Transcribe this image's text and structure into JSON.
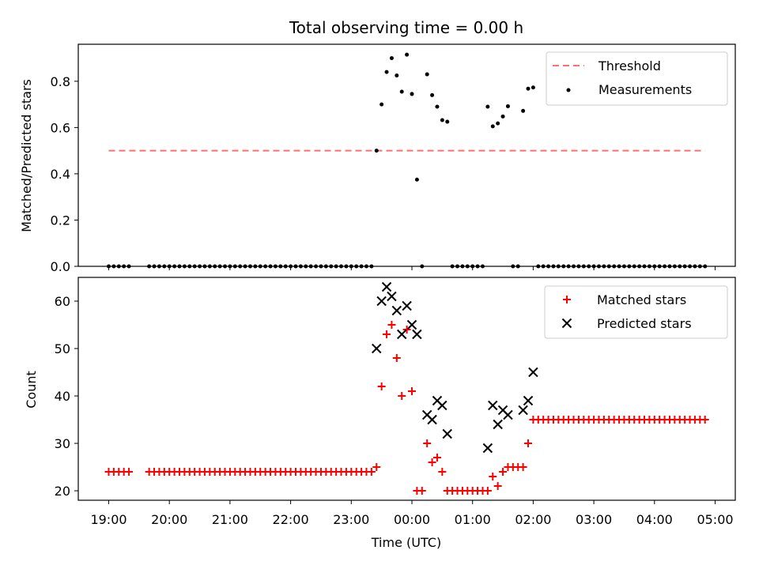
{
  "chart_data": {
    "title": "Total observing time = 0.00 h",
    "xlabel": "Time (UTC)",
    "x_ticks": [
      "19:00",
      "20:00",
      "21:00",
      "22:00",
      "23:00",
      "00:00",
      "01:00",
      "02:00",
      "03:00",
      "04:00",
      "05:00"
    ],
    "panels": [
      {
        "type": "scatter",
        "ylabel": "Matched/Predicted stars",
        "ylim": [
          0,
          0.96
        ],
        "y_ticks": [
          "0.0",
          "0.2",
          "0.4",
          "0.6",
          "0.8"
        ],
        "legend_placement": "upper right",
        "threshold": {
          "name": "Threshold",
          "value": 0.5,
          "x_range": [
            "19:00",
            "04:50"
          ],
          "color": "#ff6f6f"
        },
        "measurements": {
          "name": "Measurements",
          "color": "#000000",
          "x": [
            "19:00",
            "19:05",
            "19:10",
            "19:15",
            "19:20",
            "19:40",
            "19:45",
            "19:50",
            "19:55",
            "20:00",
            "20:05",
            "20:10",
            "20:15",
            "20:20",
            "20:25",
            "20:30",
            "20:35",
            "20:40",
            "20:45",
            "20:50",
            "20:55",
            "21:00",
            "21:05",
            "21:10",
            "21:15",
            "21:20",
            "21:25",
            "21:30",
            "21:35",
            "21:40",
            "21:45",
            "21:50",
            "21:55",
            "22:00",
            "22:05",
            "22:10",
            "22:15",
            "22:20",
            "22:25",
            "22:30",
            "22:35",
            "22:40",
            "22:45",
            "22:50",
            "22:55",
            "23:00",
            "23:05",
            "23:10",
            "23:15",
            "23:20",
            "23:25",
            "23:30",
            "23:35",
            "23:40",
            "23:45",
            "23:50",
            "23:55",
            "00:00",
            "00:05",
            "00:10",
            "00:15",
            "00:20",
            "00:25",
            "00:30",
            "00:35",
            "00:40",
            "00:45",
            "00:50",
            "00:55",
            "01:00",
            "01:05",
            "01:10",
            "01:15",
            "01:20",
            "01:25",
            "01:30",
            "01:35",
            "01:40",
            "01:45",
            "01:50",
            "01:55",
            "02:00",
            "02:05",
            "02:10",
            "02:15",
            "02:20",
            "02:25",
            "02:30",
            "02:35",
            "02:40",
            "02:45",
            "02:50",
            "02:55",
            "03:00",
            "03:05",
            "03:10",
            "03:15",
            "03:20",
            "03:25",
            "03:30",
            "03:35",
            "03:40",
            "03:45",
            "03:50",
            "03:55",
            "04:00",
            "04:05",
            "04:10",
            "04:15",
            "04:20",
            "04:25",
            "04:30",
            "04:35",
            "04:40",
            "04:45",
            "04:50"
          ],
          "y": [
            0,
            0,
            0,
            0,
            0,
            0,
            0,
            0,
            0,
            0,
            0,
            0,
            0,
            0,
            0,
            0,
            0,
            0,
            0,
            0,
            0,
            0,
            0,
            0,
            0,
            0,
            0,
            0,
            0,
            0,
            0,
            0,
            0,
            0,
            0,
            0,
            0,
            0,
            0,
            0,
            0,
            0,
            0,
            0,
            0,
            0,
            0,
            0,
            0,
            0,
            0.5,
            0.7,
            0.84,
            0.9,
            0.825,
            0.755,
            0.915,
            0.745,
            0.375,
            0,
            0.83,
            0.74,
            0.69,
            0.632,
            0.625,
            0,
            0,
            0,
            0,
            0,
            0,
            0,
            0.69,
            0.605,
            0.618,
            0.648,
            0.692,
            0,
            0,
            0.672,
            0.768,
            0.773,
            0,
            0,
            0,
            0,
            0,
            0,
            0,
            0,
            0,
            0,
            0,
            0,
            0,
            0,
            0,
            0,
            0,
            0,
            0,
            0,
            0,
            0,
            0,
            0,
            0,
            0,
            0,
            0,
            0,
            0,
            0,
            0,
            0,
            0
          ]
        }
      },
      {
        "type": "scatter",
        "ylabel": "Count",
        "ylim": [
          18,
          65
        ],
        "y_ticks": [
          "20",
          "30",
          "40",
          "50",
          "60"
        ],
        "legend_placement": "upper right",
        "series": [
          {
            "name": "Matched stars",
            "marker": "+",
            "color": "#ff0000",
            "x": [
              "19:00",
              "19:05",
              "19:10",
              "19:15",
              "19:20",
              "19:40",
              "19:45",
              "19:50",
              "19:55",
              "20:00",
              "20:05",
              "20:10",
              "20:15",
              "20:20",
              "20:25",
              "20:30",
              "20:35",
              "20:40",
              "20:45",
              "20:50",
              "20:55",
              "21:00",
              "21:05",
              "21:10",
              "21:15",
              "21:20",
              "21:25",
              "21:30",
              "21:35",
              "21:40",
              "21:45",
              "21:50",
              "21:55",
              "22:00",
              "22:05",
              "22:10",
              "22:15",
              "22:20",
              "22:25",
              "22:30",
              "22:35",
              "22:40",
              "22:45",
              "22:50",
              "22:55",
              "23:00",
              "23:05",
              "23:10",
              "23:15",
              "23:20",
              "23:25",
              "23:30",
              "23:35",
              "23:40",
              "23:45",
              "23:50",
              "23:55",
              "00:00",
              "00:05",
              "00:10",
              "00:15",
              "00:20",
              "00:25",
              "00:30",
              "00:35",
              "00:40",
              "00:45",
              "00:50",
              "00:55",
              "01:00",
              "01:05",
              "01:10",
              "01:15",
              "01:20",
              "01:25",
              "01:30",
              "01:35",
              "01:40",
              "01:45",
              "01:50",
              "01:55",
              "02:00",
              "02:05",
              "02:10",
              "02:15",
              "02:20",
              "02:25",
              "02:30",
              "02:35",
              "02:40",
              "02:45",
              "02:50",
              "02:55",
              "03:00",
              "03:05",
              "03:10",
              "03:15",
              "03:20",
              "03:25",
              "03:30",
              "03:35",
              "03:40",
              "03:45",
              "03:50",
              "03:55",
              "04:00",
              "04:05",
              "04:10",
              "04:15",
              "04:20",
              "04:25",
              "04:30",
              "04:35",
              "04:40",
              "04:45",
              "04:50"
            ],
            "y": [
              24,
              24,
              24,
              24,
              24,
              24,
              24,
              24,
              24,
              24,
              24,
              24,
              24,
              24,
              24,
              24,
              24,
              24,
              24,
              24,
              24,
              24,
              24,
              24,
              24,
              24,
              24,
              24,
              24,
              24,
              24,
              24,
              24,
              24,
              24,
              24,
              24,
              24,
              24,
              24,
              24,
              24,
              24,
              24,
              24,
              24,
              24,
              24,
              24,
              24,
              25,
              42,
              53,
              55,
              48,
              40,
              54,
              41,
              20,
              20,
              30,
              26,
              27,
              24,
              20,
              20,
              20,
              20,
              20,
              20,
              20,
              20,
              20,
              23,
              21,
              24,
              25,
              25,
              25,
              25,
              30,
              35,
              35,
              35,
              35,
              35,
              35,
              35,
              35,
              35,
              35,
              35,
              35,
              35,
              35,
              35,
              35,
              35,
              35,
              35,
              35,
              35,
              35,
              35,
              35,
              35,
              35,
              35,
              35,
              35,
              35,
              35,
              35,
              35,
              35,
              35
            ]
          },
          {
            "name": "Predicted stars",
            "marker": "x",
            "color": "#000000",
            "x": [
              "23:25",
              "23:30",
              "23:35",
              "23:40",
              "23:45",
              "23:50",
              "23:55",
              "00:00",
              "00:05",
              "00:15",
              "00:20",
              "00:25",
              "00:30",
              "00:35",
              "01:15",
              "01:20",
              "01:25",
              "01:30",
              "01:35",
              "01:50",
              "01:55",
              "02:00"
            ],
            "y": [
              50,
              60,
              63,
              61,
              58,
              53,
              59,
              55,
              53,
              36,
              35,
              39,
              38,
              32,
              29,
              38,
              34,
              37,
              36,
              37,
              39,
              45
            ]
          }
        ]
      }
    ]
  }
}
